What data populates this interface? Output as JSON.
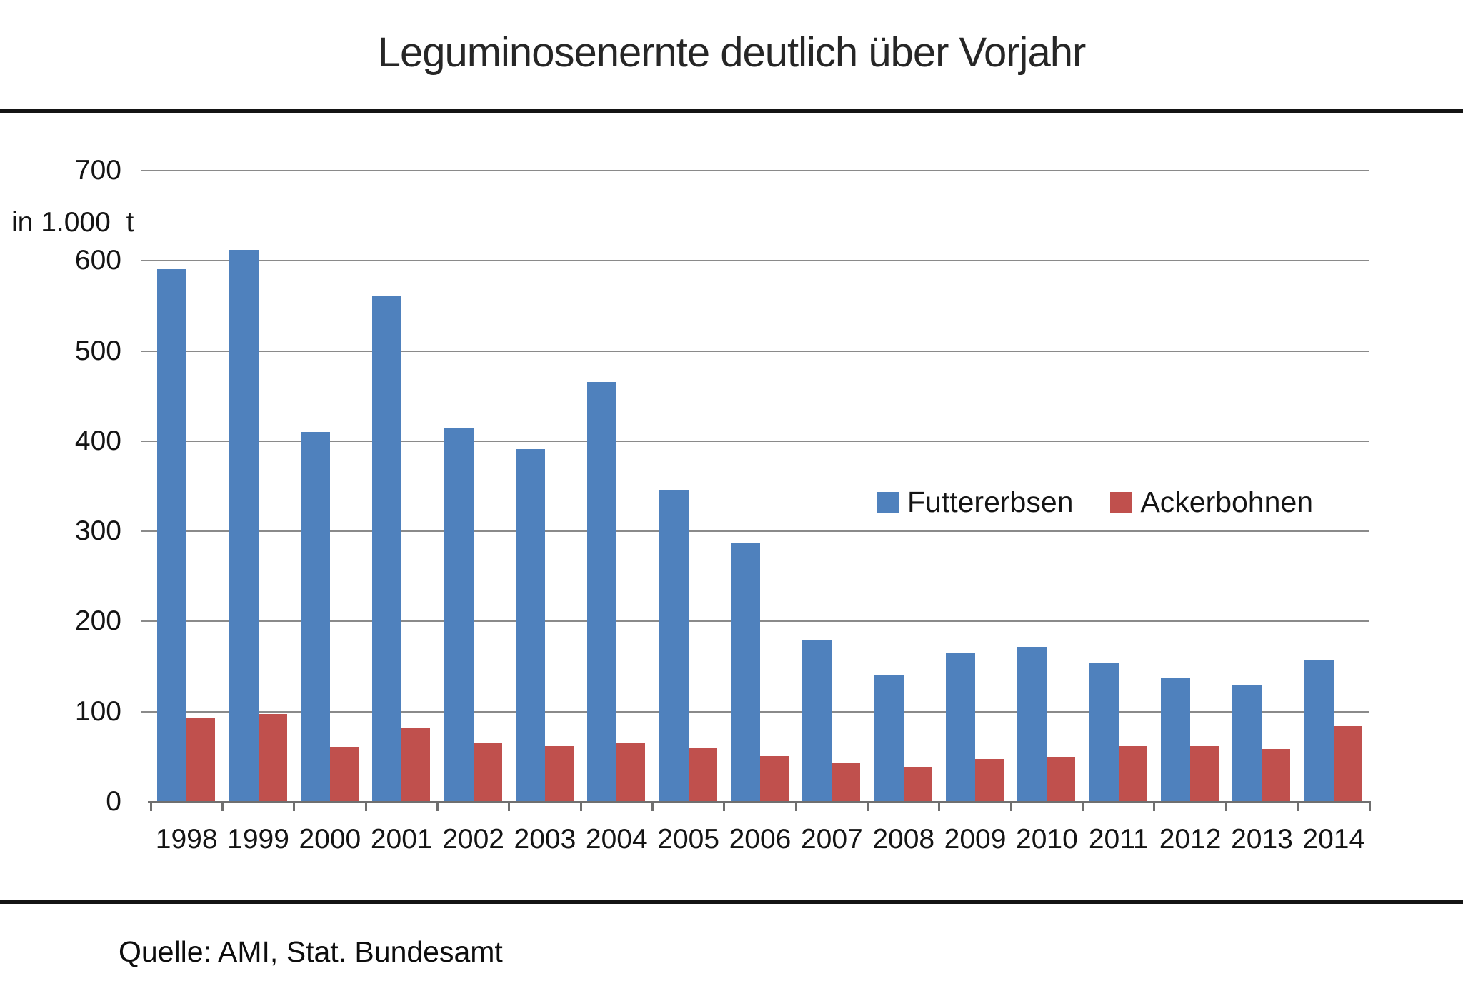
{
  "title": "Leguminosenernte deutlich über Vorjahr",
  "y_axis_unit_label": "in 1.000  t",
  "source": "Quelle: AMI, Stat. Bundesamt",
  "legend": [
    {
      "label": "Futtererbsen",
      "color": "#4F81BD"
    },
    {
      "label": "Ackerbohnen",
      "color": "#C0504D"
    }
  ],
  "colors": {
    "futtererbsen_blue": "#4F81BD",
    "ackerbohnen_red": "#C0504D",
    "gridline_gray": "#8a8a8a",
    "axis_gray": "#6f6f6f",
    "rule_black": "#141414"
  },
  "chart_data": {
    "type": "bar",
    "title": "Leguminosenernte deutlich über Vorjahr",
    "ylabel": "in 1.000  t",
    "xlabel": "",
    "categories": [
      1998,
      1999,
      2000,
      2001,
      2002,
      2003,
      2004,
      2005,
      2006,
      2007,
      2008,
      2009,
      2010,
      2011,
      2012,
      2013,
      2014
    ],
    "series": [
      {
        "name": "Futtererbsen",
        "color": "#4F81BD",
        "values": [
          590,
          611,
          409,
          560,
          413,
          390,
          465,
          345,
          287,
          178,
          140,
          164,
          171,
          153,
          137,
          128,
          157
        ]
      },
      {
        "name": "Ackerbohnen",
        "color": "#C0504D",
        "values": [
          93,
          97,
          60,
          81,
          65,
          61,
          64,
          59,
          50,
          42,
          38,
          47,
          49,
          61,
          61,
          58,
          83
        ]
      }
    ],
    "ylim": [
      0,
      700
    ],
    "ytick_step": 100,
    "yticks": [
      0,
      100,
      200,
      300,
      400,
      500,
      600,
      700
    ],
    "grid": true,
    "legend_position": "middle-right",
    "source": "Quelle: AMI, Stat. Bundesamt"
  }
}
